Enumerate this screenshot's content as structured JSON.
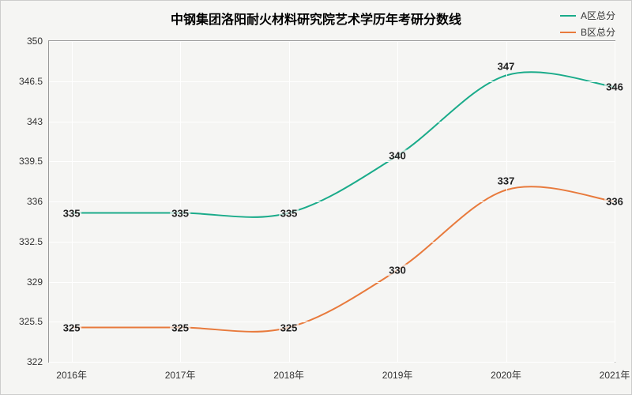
{
  "chart": {
    "type": "line",
    "title": "中钢集团洛阳耐火材料研究院艺术学历年考研分数线",
    "title_fontsize": 16,
    "title_weight": "bold",
    "background_color": "#f5f5f3",
    "grid_color": "#ffffff",
    "border_color": "#999999",
    "label_fontsize": 12,
    "data_label_fontsize": 13,
    "x": {
      "categories": [
        "2016年",
        "2017年",
        "2018年",
        "2019年",
        "2020年",
        "2021年"
      ],
      "positions_pct": [
        4,
        23.2,
        42.4,
        61.6,
        80.8,
        100
      ]
    },
    "y": {
      "min": 322,
      "max": 350,
      "ticks": [
        322,
        325.5,
        329,
        332.5,
        336,
        339.5,
        343,
        346.5,
        350
      ]
    },
    "legend": {
      "items": [
        {
          "label": "A区总分",
          "color": "#1aab8a"
        },
        {
          "label": "B区总分",
          "color": "#e87a3c"
        }
      ]
    },
    "series": [
      {
        "name": "A区总分",
        "color": "#1aab8a",
        "line_width": 2,
        "smooth": true,
        "values": [
          335,
          335,
          335,
          340,
          347,
          346
        ],
        "label_offsets_y": [
          0,
          0,
          0,
          0,
          -12,
          0
        ]
      },
      {
        "name": "B区总分",
        "color": "#e87a3c",
        "line_width": 2,
        "smooth": true,
        "values": [
          325,
          325,
          325,
          330,
          337,
          336
        ],
        "label_offsets_y": [
          0,
          0,
          0,
          0,
          -12,
          0
        ]
      }
    ]
  }
}
